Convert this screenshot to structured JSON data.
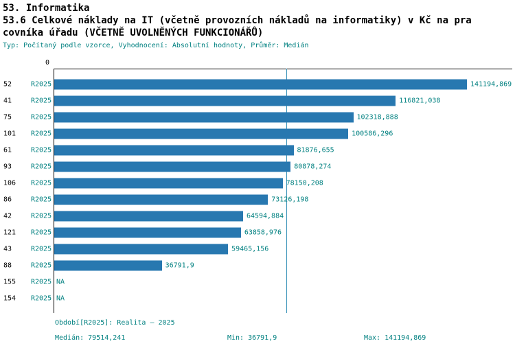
{
  "header": {
    "title_line1": "53. Informatika",
    "title_line2": "53.6 Celkové náklady na IT (včetně provozních nákladů na informatiky) v Kč na pra",
    "title_line3": "covníka úřadu (VČETNĚ UVOLNĚNÝCH FUNKCIONÁŘŮ)",
    "meta": "Typ: Počítaný podle vzorce, Vyhodnocení: Absolutní hodnoty, Průměr: Medián"
  },
  "chart_data": {
    "type": "bar",
    "orientation": "horizontal",
    "title": "53.6 Celkové náklady na IT (včetně provozních nákladů na informatiky) v Kč na pracovníka úřadu (VČETNĚ UVOLNĚNÝCH FUNKCIONÁŘŮ)",
    "value_axis": {
      "zero_label": "0",
      "position": "top",
      "min": 0,
      "max": 150000
    },
    "series_period": "R2025",
    "categories": [
      "52",
      "41",
      "75",
      "101",
      "61",
      "93",
      "106",
      "86",
      "42",
      "121",
      "43",
      "88",
      "155",
      "154"
    ],
    "rows": [
      {
        "id": "52",
        "period": "R2025",
        "value": 141194.869,
        "value_label": "141194,869"
      },
      {
        "id": "41",
        "period": "R2025",
        "value": 116821.038,
        "value_label": "116821,038"
      },
      {
        "id": "75",
        "period": "R2025",
        "value": 102318.888,
        "value_label": "102318,888"
      },
      {
        "id": "101",
        "period": "R2025",
        "value": 100586.296,
        "value_label": "100586,296"
      },
      {
        "id": "61",
        "period": "R2025",
        "value": 81876.655,
        "value_label": "81876,655"
      },
      {
        "id": "93",
        "period": "R2025",
        "value": 80878.274,
        "value_label": "80878,274"
      },
      {
        "id": "106",
        "period": "R2025",
        "value": 78150.208,
        "value_label": "78150,208"
      },
      {
        "id": "86",
        "period": "R2025",
        "value": 73126.198,
        "value_label": "73126,198"
      },
      {
        "id": "42",
        "period": "R2025",
        "value": 64594.884,
        "value_label": "64594,884"
      },
      {
        "id": "121",
        "period": "R2025",
        "value": 63858.976,
        "value_label": "63858,976"
      },
      {
        "id": "43",
        "period": "R2025",
        "value": 59465.156,
        "value_label": "59465,156"
      },
      {
        "id": "88",
        "period": "R2025",
        "value": 36791.9,
        "value_label": "36791,9"
      },
      {
        "id": "155",
        "period": "R2025",
        "value": null,
        "value_label": "NA"
      },
      {
        "id": "154",
        "period": "R2025",
        "value": null,
        "value_label": "NA"
      }
    ],
    "median_value": 79514.241,
    "min_value": 36791.9,
    "max_value": 141194.869,
    "colors": {
      "bar": "#2878b0",
      "median_line": "#3a93b8",
      "teal_text": "#008080",
      "axis": "#000000"
    }
  },
  "footer": {
    "period": "Období[R2025]: Realita – 2025",
    "median": "Medián: 79514,241",
    "min": "Min: 36791,9",
    "max": "Max: 141194,869"
  }
}
